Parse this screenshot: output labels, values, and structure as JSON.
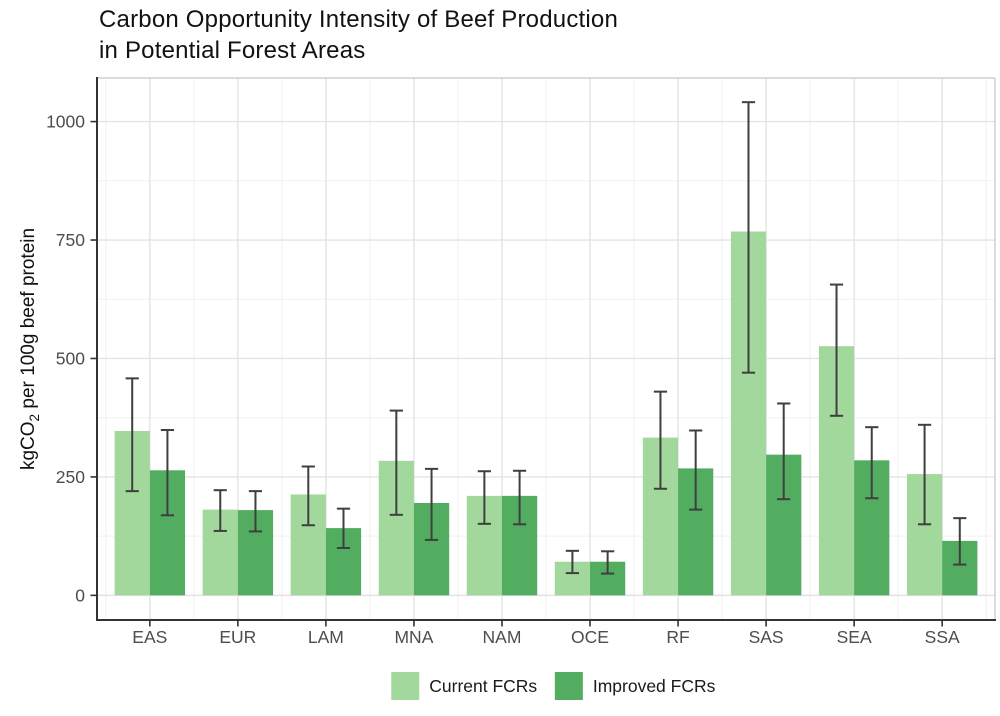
{
  "title": {
    "line1": "Carbon Opportunity Intensity of Beef Production",
    "line2": "in Potential Forest Areas"
  },
  "y_axis": {
    "label_prefix": "kgCO",
    "label_sub": "2",
    "label_suffix": " per 100g beef protein"
  },
  "chart_data": {
    "type": "bar",
    "title": "Carbon Opportunity Intensity of Beef Production in Potential Forest Areas",
    "ylabel": "kgCO2 per 100g beef protein",
    "xlabel": "",
    "categories": [
      "EAS",
      "EUR",
      "LAM",
      "MNA",
      "NAM",
      "OCE",
      "RF",
      "SAS",
      "SEA",
      "SSA"
    ],
    "series": [
      {
        "name": "Current FCRs",
        "color": "#a3d89c",
        "values": [
          347,
          181,
          213,
          284,
          210,
          71,
          333,
          768,
          526,
          256
        ],
        "error_low": [
          220,
          136,
          148,
          170,
          151,
          47,
          225,
          470,
          379,
          150
        ],
        "error_high": [
          458,
          222,
          272,
          390,
          262,
          94,
          430,
          1041,
          656,
          360
        ]
      },
      {
        "name": "Improved FCRs",
        "color": "#53ad60",
        "values": [
          264,
          180,
          142,
          195,
          210,
          71,
          268,
          297,
          285,
          115
        ],
        "error_low": [
          169,
          135,
          100,
          117,
          150,
          46,
          181,
          203,
          205,
          65
        ],
        "error_high": [
          349,
          220,
          183,
          267,
          263,
          93,
          348,
          405,
          355,
          163
        ]
      }
    ],
    "yticks": [
      0,
      250,
      500,
      750,
      1000
    ],
    "minor_gridlines": [
      125,
      375,
      625,
      875
    ],
    "ylim": [
      -52,
      1092
    ],
    "grid": true,
    "legend_position": "bottom",
    "colors": {
      "error_bar": "#3f3f3f",
      "axis_line": "#333333",
      "panel_border": "#c6c6c6",
      "major_grid": "#e3e3e3",
      "minor_grid": "#f0f0f0",
      "tick_text": "#4d4d4d",
      "legend_text": "#1a1a1a"
    }
  }
}
